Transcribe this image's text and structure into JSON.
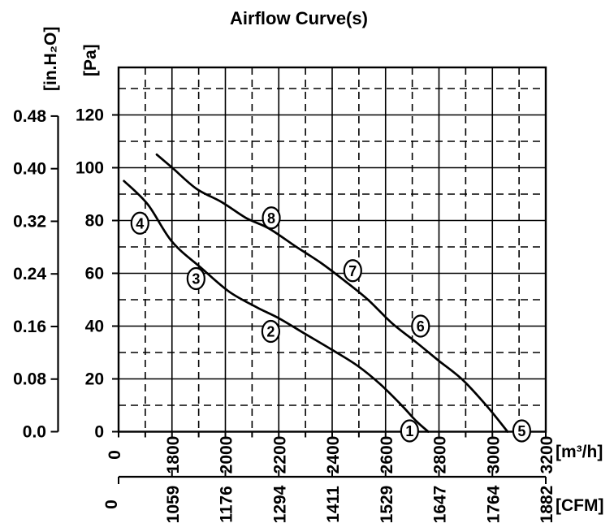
{
  "title": "Airflow Curve(s)",
  "chart_data": {
    "type": "line",
    "title": "Airflow Curve(s)",
    "grid": "major solid, minor dashed",
    "x_axis_primary": {
      "unit": "[m³/h]",
      "tick_labels": [
        "0",
        "1800",
        "2000",
        "2200",
        "2400",
        "2600",
        "2800",
        "3000",
        "3200"
      ],
      "broken_axis": "0 at origin, scale resumes at 1800"
    },
    "x_axis_secondary": {
      "unit": "[CFM]",
      "tick_labels": [
        "0",
        "1059",
        "1176",
        "1294",
        "1411",
        "1529",
        "1647",
        "1764",
        "1882"
      ]
    },
    "y_axis_primary": {
      "unit": "[Pa]",
      "tick_labels": [
        "0",
        "20",
        "40",
        "60",
        "80",
        "100",
        "120"
      ],
      "range_top": 138
    },
    "y_axis_secondary": {
      "unit": "[in.H₂O]",
      "tick_labels": [
        "0.0",
        "0.08",
        "0.16",
        "0.24",
        "0.32",
        "0.40",
        "0.48"
      ]
    },
    "series": [
      {
        "name": "curve-1-2-3-4",
        "points_m3h_pa": [
          [
            1620,
            95
          ],
          [
            1710,
            86
          ],
          [
            1800,
            72
          ],
          [
            1910,
            62
          ],
          [
            2015,
            53
          ],
          [
            2120,
            47
          ],
          [
            2200,
            43
          ],
          [
            2300,
            37
          ],
          [
            2400,
            31
          ],
          [
            2495,
            25
          ],
          [
            2580,
            18
          ],
          [
            2660,
            10
          ],
          [
            2715,
            4
          ],
          [
            2760,
            0
          ]
        ]
      },
      {
        "name": "curve-5-6-7-8",
        "points_m3h_pa": [
          [
            1743,
            105
          ],
          [
            1801,
            100
          ],
          [
            1892,
            92
          ],
          [
            1986,
            87
          ],
          [
            2077,
            81
          ],
          [
            2163,
            77
          ],
          [
            2266,
            70
          ],
          [
            2357,
            64
          ],
          [
            2449,
            57
          ],
          [
            2534,
            50
          ],
          [
            2625,
            41
          ],
          [
            2713,
            34
          ],
          [
            2798,
            27
          ],
          [
            2890,
            19.5
          ],
          [
            2981,
            9.5
          ],
          [
            3057,
            0
          ]
        ]
      }
    ],
    "point_labels": [
      {
        "text": "4",
        "m3h": 1680,
        "pa": 79
      },
      {
        "text": "3",
        "m3h": 1890,
        "pa": 58
      },
      {
        "text": "2",
        "m3h": 2170,
        "pa": 38
      },
      {
        "text": "1",
        "m3h": 2690,
        "pa": 0.3
      },
      {
        "text": "8",
        "m3h": 2172,
        "pa": 81
      },
      {
        "text": "7",
        "m3h": 2477,
        "pa": 61
      },
      {
        "text": "6",
        "m3h": 2731,
        "pa": 40
      },
      {
        "text": "5",
        "m3h": 3110,
        "pa": 0.3
      }
    ]
  }
}
